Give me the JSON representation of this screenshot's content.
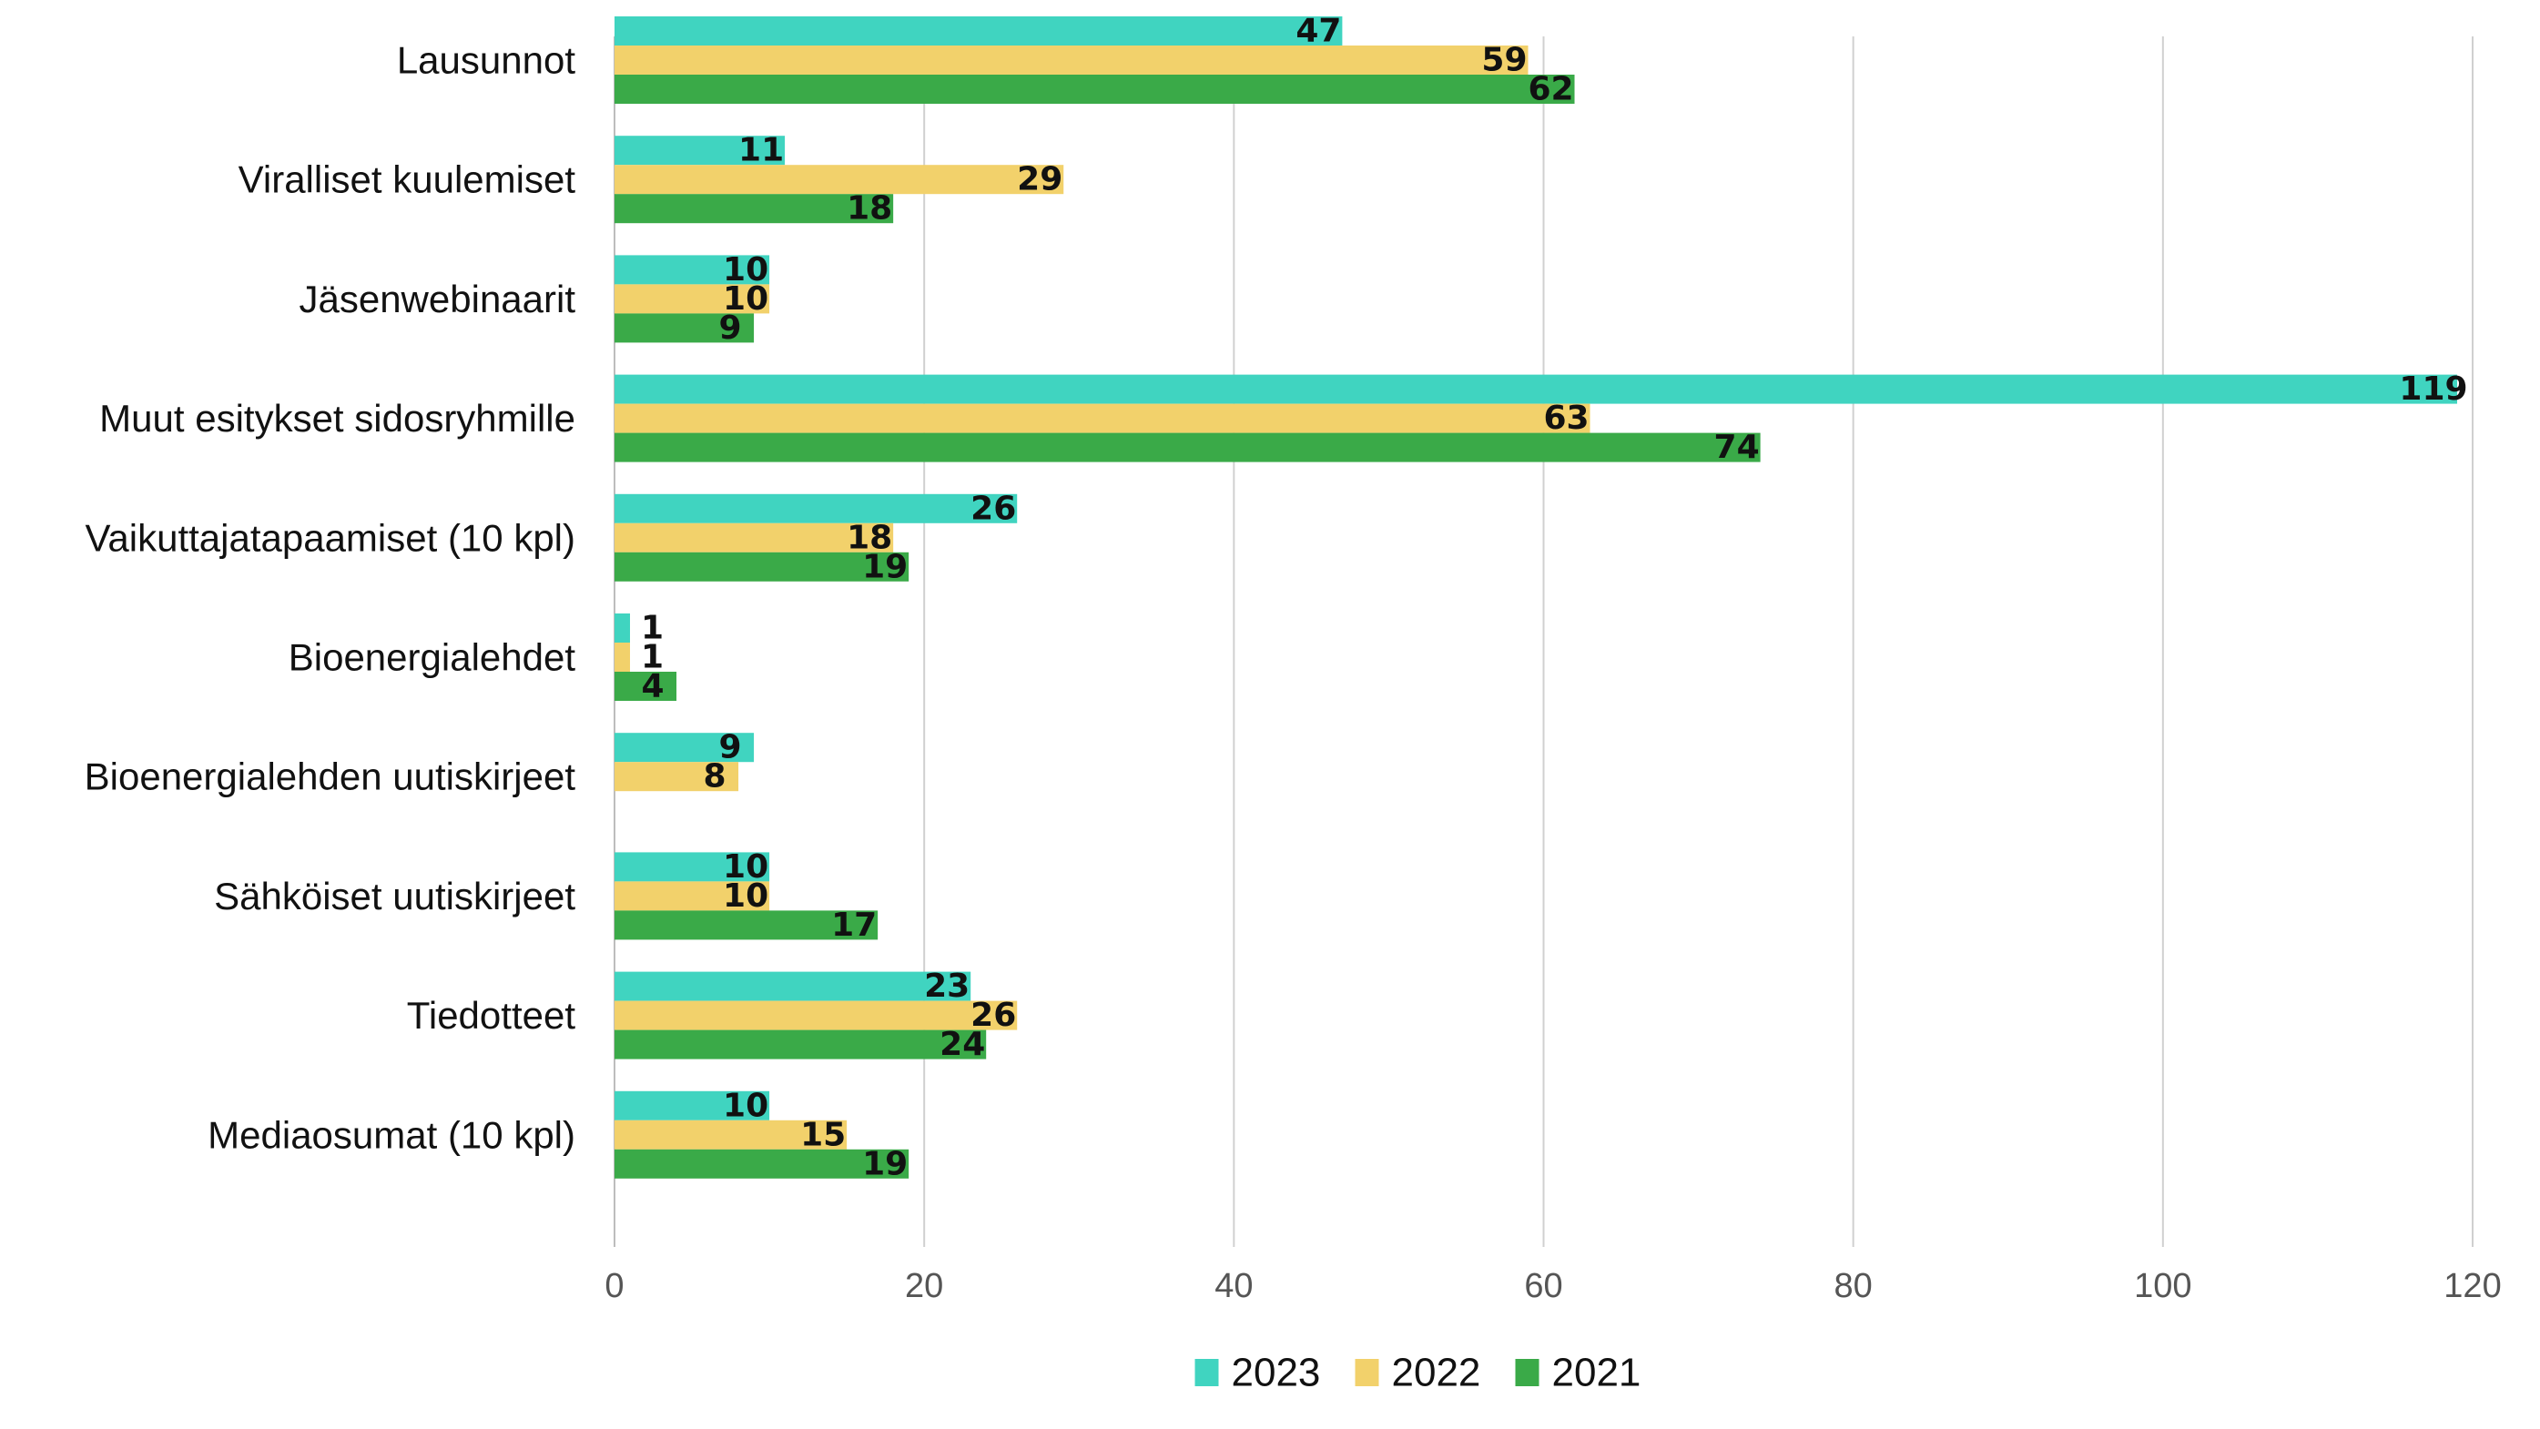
{
  "chart_data": {
    "type": "bar",
    "orientation": "horizontal",
    "title": "",
    "xlabel": "",
    "ylabel": "",
    "xlim": [
      0,
      120
    ],
    "x_ticks": [
      0,
      20,
      40,
      60,
      80,
      100,
      120
    ],
    "grid": true,
    "legend_position": "bottom",
    "categories": [
      "Lausunnot",
      "Viralliset kuulemiset",
      "Jäsenwebinaarit",
      "Muut esitykset sidosryhmille",
      "Vaikuttajatapaamiset (10 kpl)",
      "Bioenergialehdet",
      "Bioenergialehden uutiskirjeet",
      "Sähköiset uutiskirjeet",
      "Tiedotteet",
      "Mediaosumat (10 kpl)"
    ],
    "series": [
      {
        "name": "2023",
        "color": "#40d4c0",
        "values": [
          47,
          11,
          10,
          119,
          26,
          1,
          9,
          10,
          23,
          10
        ]
      },
      {
        "name": "2022",
        "color": "#f2d16b",
        "values": [
          59,
          29,
          10,
          63,
          18,
          1,
          8,
          10,
          26,
          15
        ]
      },
      {
        "name": "2021",
        "color": "#3aaa48",
        "values": [
          62,
          18,
          9,
          74,
          19,
          4,
          null,
          17,
          24,
          19
        ]
      }
    ]
  }
}
